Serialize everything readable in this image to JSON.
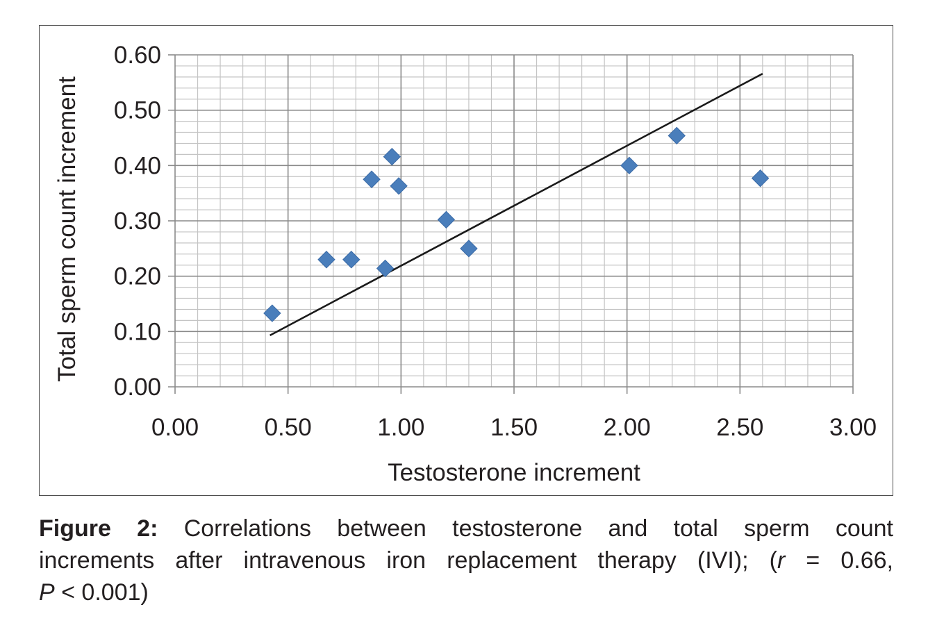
{
  "chart_data": {
    "type": "scatter",
    "xlabel": "Testosterone increment",
    "ylabel": "Total sperm count increment",
    "xlim": [
      0,
      3
    ],
    "ylim": [
      0,
      0.6
    ],
    "x_ticks": [
      "0.00",
      "0.50",
      "1.00",
      "1.50",
      "2.00",
      "2.50",
      "3.00"
    ],
    "y_ticks": [
      "0.00",
      "0.10",
      "0.20",
      "0.30",
      "0.40",
      "0.50",
      "0.60"
    ],
    "grid": true,
    "marker_color": "#4a7ebb",
    "series": [
      {
        "points": [
          {
            "x": 0.43,
            "y": 0.133
          },
          {
            "x": 0.67,
            "y": 0.23
          },
          {
            "x": 0.78,
            "y": 0.23
          },
          {
            "x": 0.87,
            "y": 0.375
          },
          {
            "x": 0.93,
            "y": 0.214
          },
          {
            "x": 0.96,
            "y": 0.416
          },
          {
            "x": 0.99,
            "y": 0.363
          },
          {
            "x": 1.2,
            "y": 0.302
          },
          {
            "x": 1.3,
            "y": 0.25
          },
          {
            "x": 2.01,
            "y": 0.4
          },
          {
            "x": 2.22,
            "y": 0.454
          },
          {
            "x": 2.59,
            "y": 0.377
          }
        ]
      }
    ],
    "trendline": {
      "x": [
        0.42,
        2.6
      ],
      "y": [
        0.093,
        0.566
      ],
      "color": "#1a1a1a"
    }
  },
  "caption": {
    "label": "Figure 2:",
    "line1_rest": " Correlations between testosterone and total sperm count",
    "line2_a": "increments after intravenous iron replacement therapy (IVI); (",
    "r_symbol": "r",
    "line2_b": " = 0.66,",
    "p_symbol": "P",
    "line3_b": " < 0.001)"
  }
}
